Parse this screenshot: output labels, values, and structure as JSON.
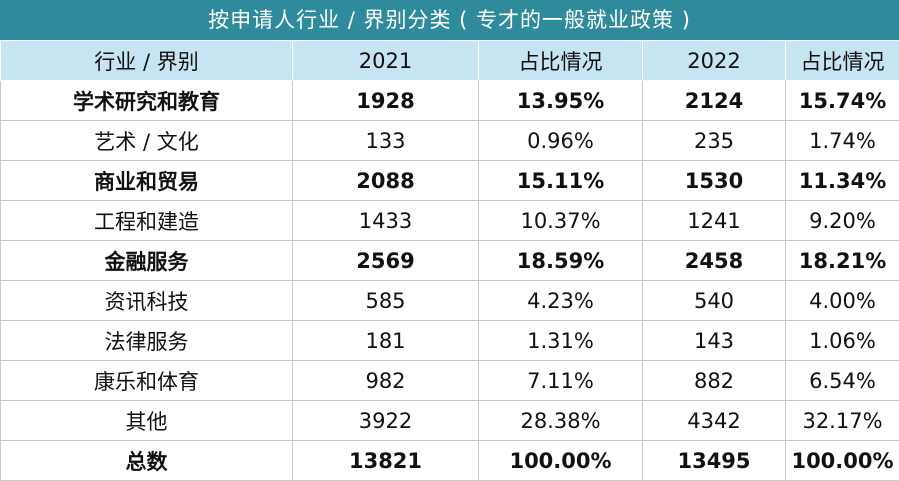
{
  "title": "按申请人行业 / 界别分类 ( 专才的一般就业政策 )",
  "table": {
    "header": [
      "行业 / 界别",
      "2021",
      "占比情况",
      "2022",
      "占比情况"
    ],
    "rows": [
      [
        "学术研究和教育",
        "1928",
        "13.95%",
        "2124",
        "15.74%"
      ],
      [
        "艺术 / 文化",
        "133",
        "0.96%",
        "235",
        "1.74%"
      ],
      [
        "商业和贸易",
        "2088",
        "15.11%",
        "1530",
        "11.34%"
      ],
      [
        "工程和建造",
        "1433",
        "10.37%",
        "1241",
        "9.20%"
      ],
      [
        "金融服务",
        "2569",
        "18.59%",
        "2458",
        "18.21%"
      ],
      [
        "资讯科技",
        "585",
        "4.23%",
        "540",
        "4.00%"
      ],
      [
        "法律服务",
        "181",
        "1.31%",
        "143",
        "1.06%"
      ],
      [
        "康乐和体育",
        "982",
        "7.11%",
        "882",
        "6.54%"
      ],
      [
        "其他",
        "3922",
        "28.38%",
        "4342",
        "32.17%"
      ],
      [
        "总数",
        "13821",
        "100.00%",
        "13495",
        "100.00%"
      ]
    ]
  }
}
